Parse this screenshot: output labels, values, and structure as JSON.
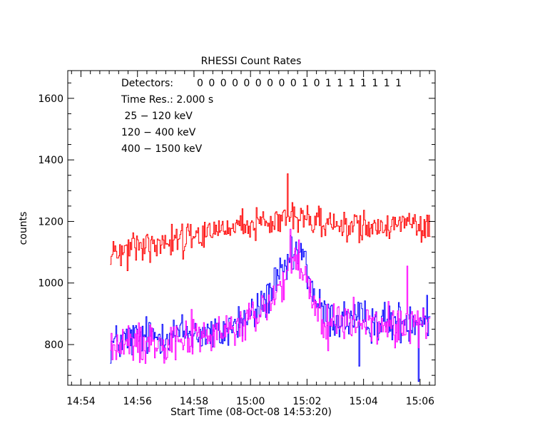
{
  "chart_data": {
    "type": "line",
    "title": "RHESSI Count Rates",
    "xlabel": "Start Time (08-Oct-08 14:53:20)",
    "ylabel": "counts",
    "x_ticks": [
      "14:54",
      "14:56",
      "14:58",
      "15:00",
      "15:02",
      "15:04",
      "15:06"
    ],
    "y_ticks": [
      "800",
      "1000",
      "1200",
      "1400",
      "1600"
    ],
    "x_unit": "minutes since 14:53:20",
    "xlim": [
      0.2,
      13.2
    ],
    "ylim": [
      668,
      1690
    ],
    "grid": false,
    "annotations": {
      "detectors_label": "Detectors:",
      "detectors_value": "0 0 0 0 0 0 0 0 0 1 0 1 1 1 1 1 1 1",
      "time_res": "Time Res.: 2.000 s"
    },
    "legend_placement": "top-left",
    "series": [
      {
        "name": "25 - 120 keV",
        "label": " 25 − 120 keV",
        "color": "#0000ff",
        "anchors": [
          [
            1.7,
            800
          ],
          [
            2.5,
            820
          ],
          [
            3.5,
            830
          ],
          [
            4.5,
            840
          ],
          [
            5.5,
            830
          ],
          [
            6.0,
            860
          ],
          [
            6.5,
            880
          ],
          [
            7.0,
            920
          ],
          [
            7.5,
            990
          ],
          [
            7.8,
            1030
          ],
          [
            8.0,
            1060
          ],
          [
            8.3,
            1100
          ],
          [
            8.6,
            1060
          ],
          [
            8.9,
            960
          ],
          [
            9.2,
            900
          ],
          [
            9.6,
            880
          ],
          [
            10.5,
            880
          ],
          [
            11.5,
            870
          ],
          [
            12.3,
            880
          ],
          [
            12.8,
            890
          ],
          [
            13.0,
            880
          ]
        ],
        "spikes": [
          [
            10.5,
            730
          ],
          [
            12.6,
            680
          ],
          [
            12.9,
            960
          ],
          [
            8.1,
            1150
          ],
          [
            8.5,
            1110
          ]
        ]
      },
      {
        "name": "120 - 400 keV",
        "label": "120 − 400 keV",
        "color": "#ff00ff",
        "anchors": [
          [
            1.7,
            790
          ],
          [
            2.5,
            800
          ],
          [
            3.5,
            815
          ],
          [
            4.5,
            830
          ],
          [
            5.5,
            830
          ],
          [
            6.0,
            850
          ],
          [
            6.5,
            870
          ],
          [
            7.0,
            900
          ],
          [
            7.5,
            960
          ],
          [
            7.8,
            1000
          ],
          [
            8.0,
            1040
          ],
          [
            8.3,
            1060
          ],
          [
            8.6,
            1010
          ],
          [
            8.9,
            930
          ],
          [
            9.2,
            880
          ],
          [
            9.6,
            870
          ],
          [
            10.5,
            870
          ],
          [
            11.5,
            860
          ],
          [
            12.3,
            870
          ],
          [
            12.8,
            870
          ],
          [
            13.0,
            860
          ]
        ],
        "spikes": [
          [
            8.05,
            1175
          ],
          [
            8.35,
            1140
          ],
          [
            12.2,
            1055
          ],
          [
            9.4,
            780
          ]
        ]
      },
      {
        "name": "400 - 1500 keV",
        "label": "400 − 1500 keV",
        "color": "#ff0000",
        "anchors": [
          [
            1.7,
            1105
          ],
          [
            2.5,
            1120
          ],
          [
            3.5,
            1135
          ],
          [
            4.5,
            1155
          ],
          [
            5.5,
            1170
          ],
          [
            6.5,
            1185
          ],
          [
            7.5,
            1205
          ],
          [
            8.0,
            1220
          ],
          [
            8.5,
            1210
          ],
          [
            9.0,
            1200
          ],
          [
            10.0,
            1190
          ],
          [
            11.0,
            1185
          ],
          [
            12.0,
            1180
          ],
          [
            13.0,
            1175
          ]
        ],
        "spikes": [
          [
            7.95,
            1355
          ],
          [
            2.3,
            1040
          ],
          [
            1.7,
            1060
          ]
        ]
      }
    ]
  }
}
